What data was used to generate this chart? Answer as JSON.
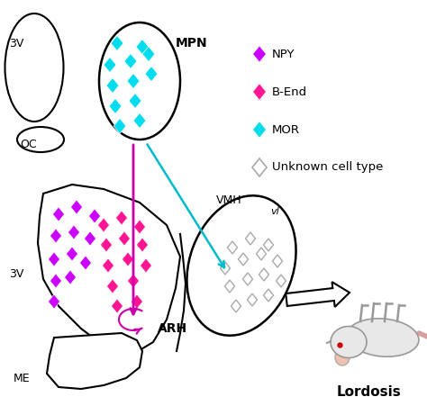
{
  "background_color": "#ffffff",
  "legend_items": [
    {
      "label": "NPY",
      "color": "#cc00ff",
      "filled": true
    },
    {
      "label": "B-End",
      "color": "#ff1493",
      "filled": true
    },
    {
      "label": "MOR",
      "color": "#00ddee",
      "filled": true
    },
    {
      "label": "Unknown cell type",
      "color": "#aaaaaa",
      "filled": false
    }
  ],
  "labels": {
    "3V_top": "3V",
    "MPN": "MPN",
    "OC": "OC",
    "VMH": "VMH",
    "vl": "vl",
    "ARH": "ARH",
    "3V_bot": "3V",
    "ME": "ME",
    "Lordosis": "Lordosis"
  },
  "npy_color": "#cc00ff",
  "bend_color": "#ff1493",
  "mor_color": "#00ddee",
  "unknown_color": "#aaaaaa",
  "arrow_magenta": "#cc00aa",
  "arrow_cyan": "#00bbcc"
}
